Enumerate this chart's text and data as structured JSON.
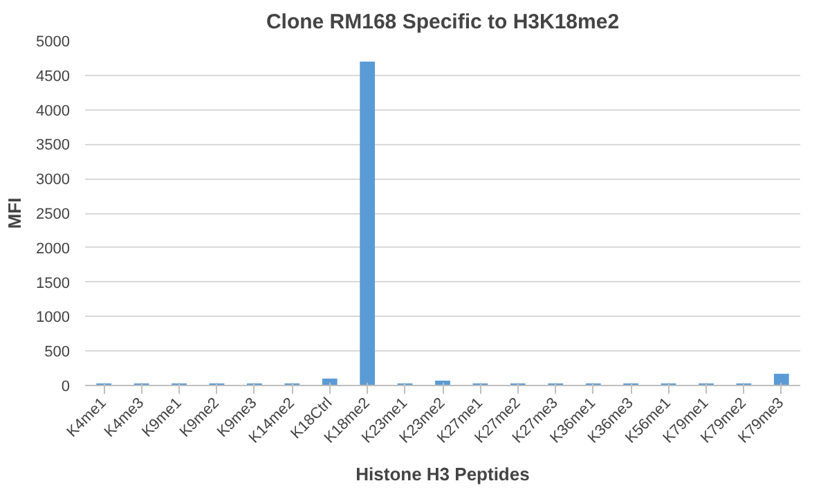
{
  "chart_data": {
    "type": "bar",
    "title": "Clone RM168 Specific to H3K18me2",
    "xlabel": "Histone H3 Peptides",
    "ylabel": "MFI",
    "categories": [
      "K4me1",
      "K4me3",
      "K9me1",
      "K9me2",
      "K9me3",
      "K14me2",
      "K18Ctrl",
      "K18me2",
      "K23me1",
      "K23me2",
      "K27me1",
      "K27me2",
      "K27me3",
      "K36me1",
      "K36me3",
      "K56me1",
      "K79me1",
      "K79me2",
      "K79me3"
    ],
    "values": [
      30,
      30,
      30,
      30,
      30,
      30,
      100,
      4700,
      30,
      70,
      30,
      30,
      30,
      30,
      30,
      30,
      30,
      30,
      170
    ],
    "color": "#5b9bd5",
    "ylim": [
      0,
      5000
    ],
    "yticks": [
      0,
      500,
      1000,
      1500,
      2000,
      2500,
      3000,
      3500,
      4000,
      4500,
      5000
    ],
    "grid": "y"
  }
}
